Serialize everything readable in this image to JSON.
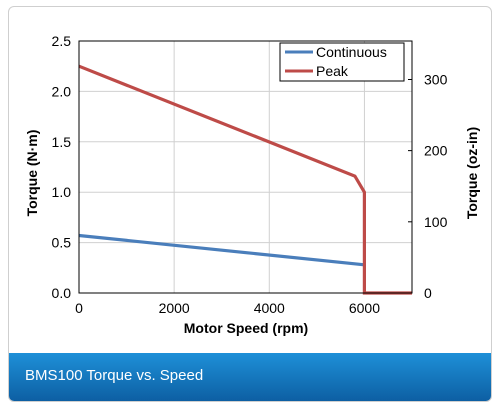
{
  "caption": "BMS100 Torque vs. Speed",
  "chart_data": {
    "type": "line",
    "title": "",
    "xlabel": "Motor Speed (rpm)",
    "ylabel": "Torque (N·m)",
    "ylabel_right": "Torque (oz-in)",
    "xlim": [
      0,
      7000
    ],
    "ylim": [
      0,
      2.5
    ],
    "ylim_right": [
      0,
      354
    ],
    "x_ticks": [
      "0",
      "2000",
      "4000",
      "6000"
    ],
    "x_tick_values": [
      0,
      2000,
      4000,
      6000
    ],
    "y_ticks": [
      "0.0",
      "0.5",
      "1.0",
      "1.5",
      "2.0",
      "2.5"
    ],
    "y_tick_values": [
      0,
      0.5,
      1.0,
      1.5,
      2.0,
      2.5
    ],
    "y_right_ticks": [
      "0",
      "100",
      "200",
      "300"
    ],
    "y_right_tick_values": [
      0,
      100,
      200,
      300
    ],
    "grid": true,
    "legend": "top-right",
    "series": [
      {
        "name": "Continuous",
        "color": "#4a7ebb",
        "points": [
          [
            0,
            0.57
          ],
          [
            6000,
            0.28
          ]
        ]
      },
      {
        "name": "Peak",
        "color": "#be4b48",
        "points": [
          [
            0,
            2.25
          ],
          [
            5800,
            1.16
          ],
          [
            6000,
            1.0
          ],
          [
            6000,
            0.0
          ],
          [
            7000,
            0.0
          ]
        ]
      }
    ]
  }
}
